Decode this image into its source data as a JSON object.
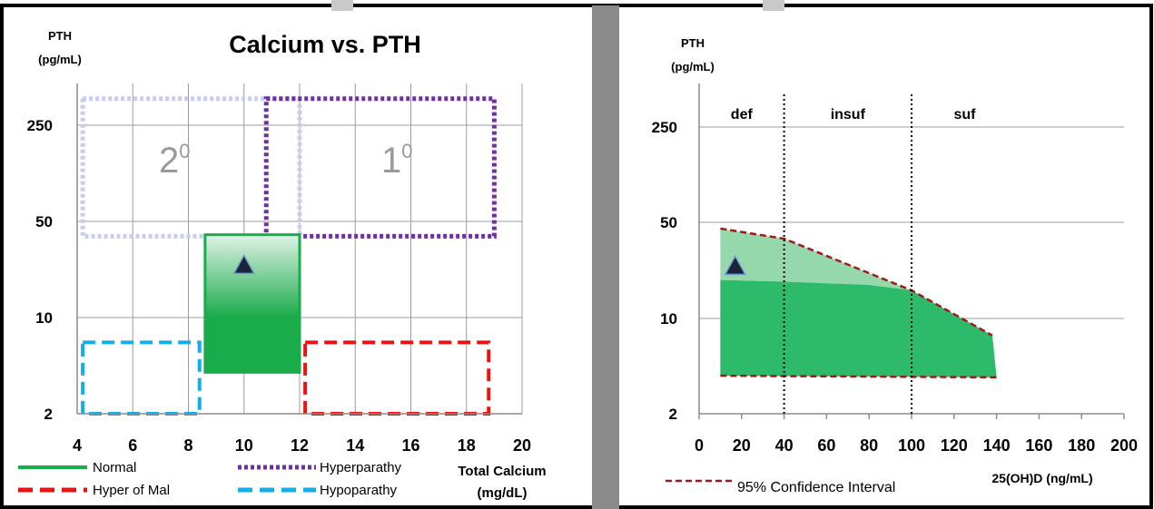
{
  "colors": {
    "normal": "#1aab4b",
    "normal_light": "#dff3e6",
    "hyperparathy": "#7030a0",
    "hyper_of_mal": "#ee1111",
    "hypoparathy": "#13aee8",
    "secondary_box": "#c8ccf4",
    "ci_line": "#a31818",
    "ci_fill_dark": "#2dbb6b",
    "ci_fill_light": "#94d8ab",
    "divider": "#8a8a8a",
    "grid": "#9c9c9c",
    "region_label": "#9a9a9a"
  },
  "chart_data": [
    {
      "type": "region",
      "title": "Calcium vs. PTH",
      "ylabel_line1": "PTH",
      "ylabel_line2": "(pg/mL)",
      "xlabel_line1": "Total Calcium",
      "xlabel_line2": "(mg/dL)",
      "x_ticks": [
        "4",
        "6",
        "8",
        "10",
        "12",
        "14",
        "16",
        "18",
        "20"
      ],
      "y_ticks": [
        "2",
        "10",
        "50",
        "250"
      ],
      "xlim": [
        4,
        20
      ],
      "ylim": [
        2,
        250
      ],
      "y_scale": "log",
      "grid": true,
      "legend_position": "bottom",
      "legend": [
        {
          "label": "Normal",
          "style": "solid",
          "color": "#1aab4b"
        },
        {
          "label": "Hyperparathy",
          "style": "dotted",
          "color": "#7030a0"
        },
        {
          "label": "Hyper of Mal",
          "style": "dashed",
          "color": "#ee1111"
        },
        {
          "label": "Hypoparathy",
          "style": "dashed",
          "color": "#13aee8"
        }
      ],
      "regions": [
        {
          "name": "Secondary",
          "style": "dotted",
          "color": "#c8ccf4",
          "x": [
            4.2,
            12
          ],
          "y": [
            39,
            390
          ]
        },
        {
          "name": "Hyperparathy",
          "style": "dotted",
          "color": "#7030a0",
          "x": [
            10.8,
            19
          ],
          "y": [
            39,
            390
          ]
        },
        {
          "name": "Normal",
          "style": "gradient",
          "color": "#1aab4b",
          "x": [
            8.6,
            12
          ],
          "y": [
            4,
            40
          ]
        },
        {
          "name": "Hyper of Mal",
          "style": "dashed",
          "color": "#ee1111",
          "x": [
            12.2,
            18.8
          ],
          "y": [
            2,
            6.6
          ]
        },
        {
          "name": "Hypoparathy",
          "style": "dashed",
          "color": "#13aee8",
          "x": [
            4.2,
            8.4
          ],
          "y": [
            2,
            6.6
          ]
        }
      ],
      "region_labels": [
        {
          "base": "2",
          "sup": "0",
          "x": 7.5,
          "y": 140
        },
        {
          "base": "1",
          "sup": "0",
          "x": 15.5,
          "y": 140
        }
      ],
      "points": [
        {
          "x": 10,
          "y": 24,
          "marker": "triangle"
        }
      ]
    },
    {
      "type": "area",
      "ylabel_line1": "PTH",
      "ylabel_line2": "(pg/mL)",
      "xlabel": "25(OH)D (ng/mL)",
      "x_ticks": [
        "0",
        "20",
        "40",
        "60",
        "80",
        "100",
        "120",
        "140",
        "160",
        "180",
        "200"
      ],
      "y_ticks": [
        "2",
        "10",
        "50",
        "250"
      ],
      "xlim": [
        0,
        200
      ],
      "ylim": [
        2,
        250
      ],
      "y_scale": "log",
      "grid": true,
      "legend_position": "bottom",
      "legend": [
        {
          "label": "95% Confidence Interval",
          "style": "dashed",
          "color": "#a31818"
        }
      ],
      "zones": [
        {
          "label": "def",
          "x_from": 0,
          "x_to": 40
        },
        {
          "label": "insuf",
          "x_from": 40,
          "x_to": 100
        },
        {
          "label": "suf",
          "x_from": 100,
          "x_to": 200
        }
      ],
      "dividers_x": [
        40,
        100
      ],
      "upper_ci": {
        "x": [
          10,
          40,
          100,
          138
        ],
        "y": [
          45,
          38,
          16,
          7.5
        ]
      },
      "lower_ci": {
        "x": [
          10,
          140
        ],
        "y": [
          3.8,
          3.7
        ]
      },
      "inner_band_top": {
        "x": [
          10,
          40,
          80,
          100,
          138
        ],
        "y": [
          19,
          18.5,
          17.5,
          16,
          7.5
        ]
      },
      "points": [
        {
          "x": 17,
          "y": 24,
          "marker": "triangle"
        }
      ]
    }
  ]
}
